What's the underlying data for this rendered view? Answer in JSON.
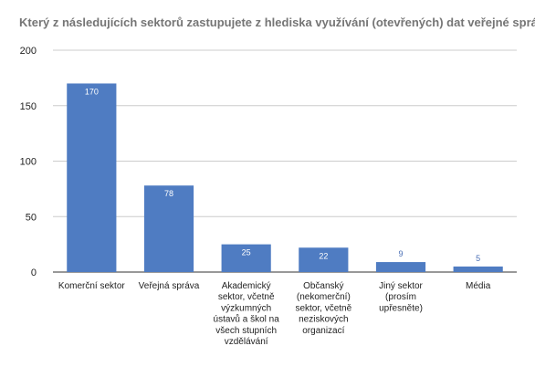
{
  "chart_data": {
    "type": "bar",
    "title": "Který z následujících sektorů zastupujete z hlediska využívání (otevřených) dat veřejné správy?",
    "categories": [
      [
        "Komerční sektor"
      ],
      [
        "Veřejná správa"
      ],
      [
        "Akademický",
        "sektor, včetně",
        "výzkumných",
        "ústavů a škol na",
        "všech stupních",
        "vzdělávání"
      ],
      [
        "Občanský",
        "(nekomerční)",
        "sektor, včetně",
        "neziskových",
        "organizací"
      ],
      [
        "Jiný sektor",
        "(prosím",
        "upřesněte)"
      ],
      [
        "Média"
      ]
    ],
    "values": [
      170,
      78,
      25,
      22,
      9,
      5
    ],
    "data_labels": [
      "170",
      "78",
      "25",
      "22",
      "9",
      "5"
    ],
    "ylim": [
      0,
      200
    ],
    "yticks": [
      0,
      50,
      100,
      150,
      200
    ],
    "grid": true,
    "bar_color": "#4f7cc2",
    "grid_color": "#cccccc",
    "label_inside_color": "#ffffff",
    "label_outside_color": "#4a6fb5"
  }
}
